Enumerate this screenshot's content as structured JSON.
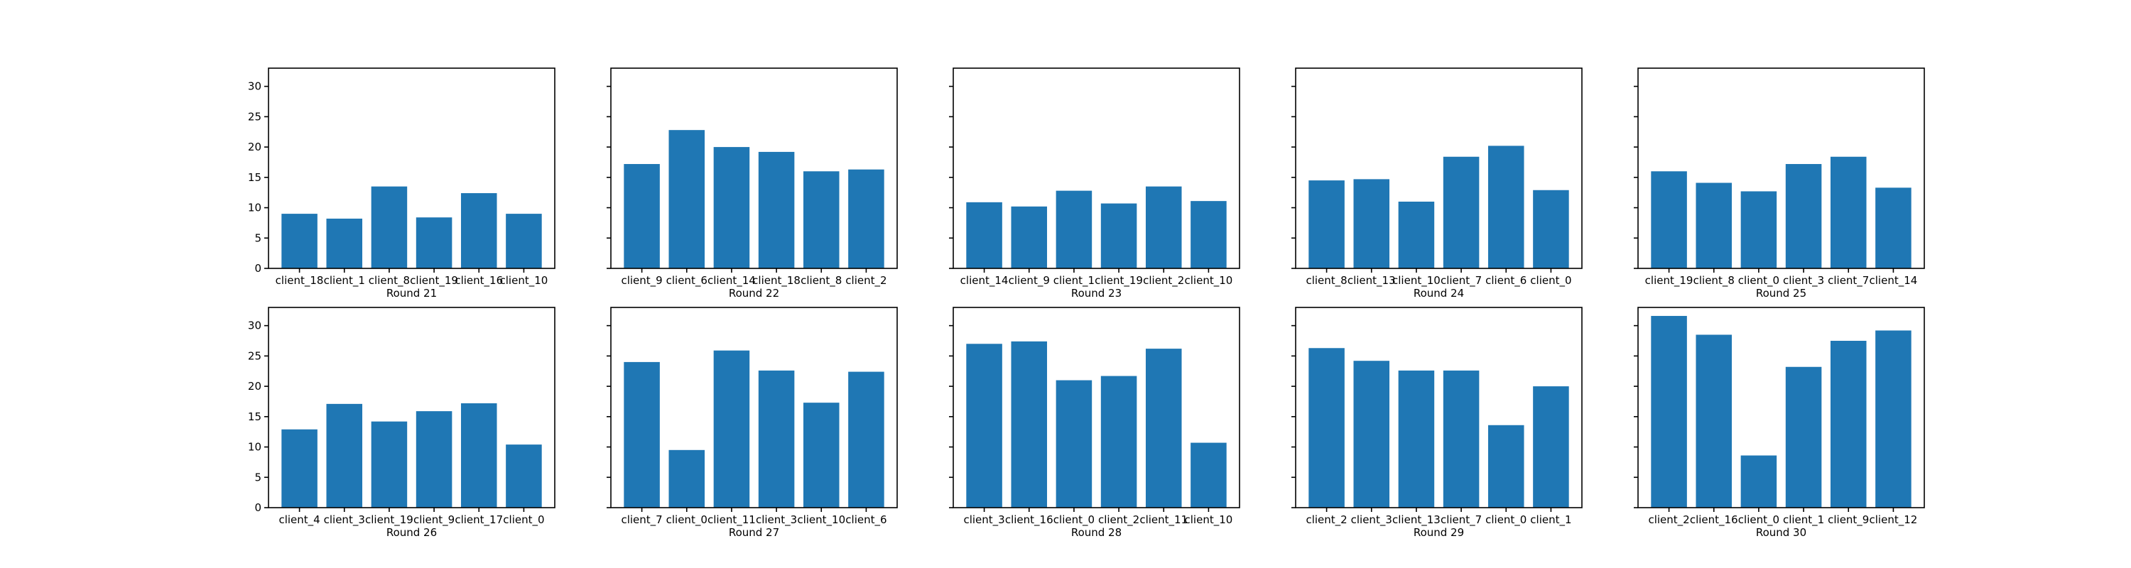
{
  "figure": {
    "background": "#ffffff"
  },
  "chart_data": [
    {
      "type": "bar",
      "xlabel": "Round 21",
      "color": "#1f77b4",
      "ylim": [
        0,
        33
      ],
      "yticks": [
        0,
        5,
        10,
        15,
        20,
        25,
        30
      ],
      "show_ytick_labels": true,
      "categories": [
        "client_18",
        "client_1",
        "client_8",
        "client_19",
        "client_16",
        "client_10"
      ],
      "values": [
        9.0,
        8.2,
        13.5,
        8.4,
        12.4,
        9.0
      ]
    },
    {
      "type": "bar",
      "xlabel": "Round 22",
      "color": "#1f77b4",
      "ylim": [
        0,
        33
      ],
      "yticks": [
        0,
        5,
        10,
        15,
        20,
        25,
        30
      ],
      "show_ytick_labels": false,
      "categories": [
        "client_9",
        "client_6",
        "client_14",
        "client_18",
        "client_8",
        "client_2"
      ],
      "values": [
        17.2,
        22.8,
        20.0,
        19.2,
        16.0,
        16.3
      ]
    },
    {
      "type": "bar",
      "xlabel": "Round 23",
      "color": "#1f77b4",
      "ylim": [
        0,
        33
      ],
      "yticks": [
        0,
        5,
        10,
        15,
        20,
        25,
        30
      ],
      "show_ytick_labels": false,
      "categories": [
        "client_14",
        "client_9",
        "client_1",
        "client_19",
        "client_2",
        "client_10"
      ],
      "values": [
        10.9,
        10.2,
        12.8,
        10.7,
        13.5,
        11.1
      ]
    },
    {
      "type": "bar",
      "xlabel": "Round 24",
      "color": "#1f77b4",
      "ylim": [
        0,
        33
      ],
      "yticks": [
        0,
        5,
        10,
        15,
        20,
        25,
        30
      ],
      "show_ytick_labels": false,
      "categories": [
        "client_8",
        "client_13",
        "client_10",
        "client_7",
        "client_6",
        "client_0"
      ],
      "values": [
        14.5,
        14.7,
        11.0,
        18.4,
        20.2,
        12.9
      ]
    },
    {
      "type": "bar",
      "xlabel": "Round 25",
      "color": "#1f77b4",
      "ylim": [
        0,
        33
      ],
      "yticks": [
        0,
        5,
        10,
        15,
        20,
        25,
        30
      ],
      "show_ytick_labels": false,
      "categories": [
        "client_19",
        "client_8",
        "client_0",
        "client_3",
        "client_7",
        "client_14"
      ],
      "values": [
        16.0,
        14.1,
        12.7,
        17.2,
        18.4,
        13.3
      ]
    },
    {
      "type": "bar",
      "xlabel": "Round 26",
      "color": "#1f77b4",
      "ylim": [
        0,
        33
      ],
      "yticks": [
        0,
        5,
        10,
        15,
        20,
        25,
        30
      ],
      "show_ytick_labels": true,
      "categories": [
        "client_4",
        "client_3",
        "client_19",
        "client_9",
        "client_17",
        "client_0"
      ],
      "values": [
        12.9,
        17.1,
        14.2,
        15.9,
        17.2,
        10.4
      ]
    },
    {
      "type": "bar",
      "xlabel": "Round 27",
      "color": "#1f77b4",
      "ylim": [
        0,
        33
      ],
      "yticks": [
        0,
        5,
        10,
        15,
        20,
        25,
        30
      ],
      "show_ytick_labels": false,
      "categories": [
        "client_7",
        "client_0",
        "client_11",
        "client_3",
        "client_10",
        "client_6"
      ],
      "values": [
        24.0,
        9.5,
        25.9,
        22.6,
        17.3,
        22.4
      ]
    },
    {
      "type": "bar",
      "xlabel": "Round 28",
      "color": "#1f77b4",
      "ylim": [
        0,
        33
      ],
      "yticks": [
        0,
        5,
        10,
        15,
        20,
        25,
        30
      ],
      "show_ytick_labels": false,
      "categories": [
        "client_3",
        "client_16",
        "client_0",
        "client_2",
        "client_11",
        "client_10"
      ],
      "values": [
        27.0,
        27.4,
        21.0,
        21.7,
        26.2,
        10.7
      ]
    },
    {
      "type": "bar",
      "xlabel": "Round 29",
      "color": "#1f77b4",
      "ylim": [
        0,
        33
      ],
      "yticks": [
        0,
        5,
        10,
        15,
        20,
        25,
        30
      ],
      "show_ytick_labels": false,
      "categories": [
        "client_2",
        "client_3",
        "client_13",
        "client_7",
        "client_0",
        "client_1"
      ],
      "values": [
        26.3,
        24.2,
        22.6,
        22.6,
        13.6,
        20.0
      ]
    },
    {
      "type": "bar",
      "xlabel": "Round 30",
      "color": "#1f77b4",
      "ylim": [
        0,
        33
      ],
      "yticks": [
        0,
        5,
        10,
        15,
        20,
        25,
        30
      ],
      "show_ytick_labels": false,
      "categories": [
        "client_2",
        "client_16",
        "client_0",
        "client_1",
        "client_9",
        "client_12"
      ],
      "values": [
        31.6,
        28.5,
        8.6,
        23.2,
        27.5,
        29.2
      ]
    }
  ]
}
